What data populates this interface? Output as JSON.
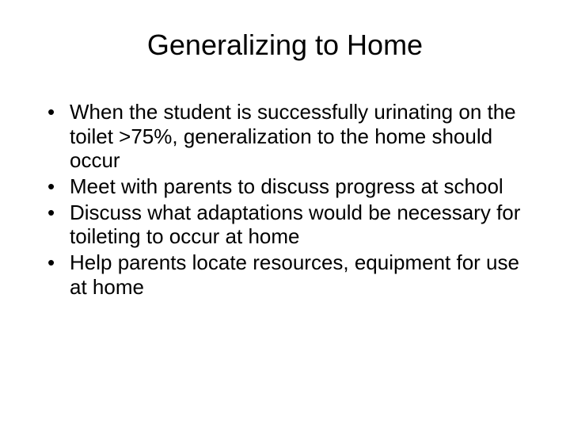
{
  "slide": {
    "title": "Generalizing to Home",
    "bullets": [
      "When the student is successfully urinating on the toilet >75%, generalization to the home should occur",
      "Meet with parents to discuss progress at school",
      "Discuss what adaptations would be necessary for toileting to occur at home",
      "Help parents locate resources, equipment for use at home"
    ]
  },
  "style": {
    "background_color": "#ffffff",
    "text_color": "#000000",
    "title_fontsize": 36,
    "body_fontsize": 26,
    "font_family": "Arial"
  }
}
